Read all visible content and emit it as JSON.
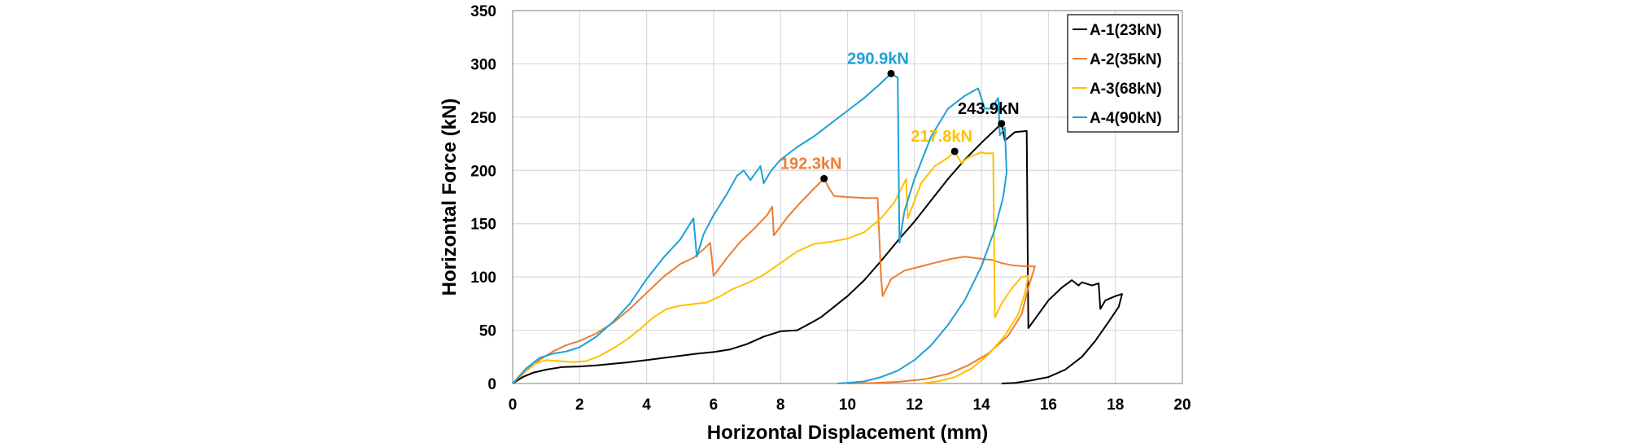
{
  "chart_data": {
    "type": "line",
    "xlabel": "Horizontal Displacement (mm)",
    "ylabel": "Horizontal Force (kN)",
    "xlim": [
      0,
      20
    ],
    "ylim": [
      0,
      350
    ],
    "xticks": [
      0,
      2,
      4,
      6,
      8,
      10,
      12,
      14,
      16,
      18,
      20
    ],
    "yticks": [
      0,
      50,
      100,
      150,
      200,
      250,
      300,
      350
    ],
    "grid": true,
    "legend_position": "top-right",
    "series": [
      {
        "name": "A-1(23kN)",
        "color": "#000000",
        "points": [
          [
            0,
            0
          ],
          [
            0.3,
            6
          ],
          [
            0.6,
            10
          ],
          [
            1.0,
            13
          ],
          [
            1.5,
            15.5
          ],
          [
            2,
            16
          ],
          [
            2.5,
            17
          ],
          [
            3,
            18.5
          ],
          [
            3.5,
            20
          ],
          [
            4,
            22
          ],
          [
            4.5,
            24
          ],
          [
            5,
            26
          ],
          [
            5.5,
            28
          ],
          [
            6,
            29.5
          ],
          [
            6.5,
            32
          ],
          [
            7,
            37
          ],
          [
            7.5,
            44
          ],
          [
            8,
            49
          ],
          [
            8.5,
            50
          ],
          [
            8.8,
            55
          ],
          [
            9.2,
            62
          ],
          [
            9.6,
            72
          ],
          [
            10,
            82
          ],
          [
            10.5,
            97
          ],
          [
            11,
            115
          ],
          [
            11.5,
            134
          ],
          [
            12,
            152
          ],
          [
            12.5,
            172
          ],
          [
            13,
            192
          ],
          [
            13.5,
            210
          ],
          [
            14,
            226
          ],
          [
            14.4,
            238
          ],
          [
            14.6,
            243.9
          ],
          [
            14.7,
            228
          ],
          [
            15.0,
            236
          ],
          [
            15.35,
            237
          ],
          [
            15.4,
            52
          ],
          [
            15.7,
            65
          ],
          [
            16.0,
            78
          ],
          [
            16.4,
            90
          ],
          [
            16.7,
            97
          ],
          [
            16.9,
            92
          ],
          [
            17.0,
            95
          ],
          [
            17.3,
            92
          ],
          [
            17.5,
            94
          ],
          [
            17.55,
            70
          ],
          [
            17.7,
            78
          ],
          [
            18.0,
            82
          ],
          [
            18.2,
            84
          ],
          [
            18.1,
            72
          ],
          [
            17.8,
            58
          ],
          [
            17.4,
            40
          ],
          [
            17.0,
            25
          ],
          [
            16.5,
            13
          ],
          [
            16.0,
            6
          ],
          [
            15.5,
            3
          ],
          [
            15,
            0.5
          ],
          [
            14.6,
            0
          ]
        ]
      },
      {
        "name": "A-2(35kN)",
        "color": "#ed7d31",
        "points": [
          [
            0,
            0
          ],
          [
            0.4,
            12
          ],
          [
            0.8,
            22
          ],
          [
            1.2,
            30
          ],
          [
            1.6,
            36
          ],
          [
            2,
            40
          ],
          [
            2.5,
            47
          ],
          [
            3,
            57
          ],
          [
            3.5,
            70
          ],
          [
            4,
            85
          ],
          [
            4.5,
            100
          ],
          [
            5,
            112
          ],
          [
            5.4,
            118
          ],
          [
            5.7,
            126
          ],
          [
            5.9,
            132
          ],
          [
            6.0,
            101
          ],
          [
            6.4,
            118
          ],
          [
            6.8,
            133
          ],
          [
            7.2,
            145
          ],
          [
            7.6,
            158
          ],
          [
            7.75,
            166
          ],
          [
            7.8,
            139
          ],
          [
            8.2,
            156
          ],
          [
            8.6,
            170
          ],
          [
            9.0,
            183
          ],
          [
            9.3,
            192.3
          ],
          [
            9.45,
            183
          ],
          [
            9.6,
            176
          ],
          [
            10,
            175
          ],
          [
            10.5,
            174
          ],
          [
            10.9,
            174
          ],
          [
            11.0,
            100
          ],
          [
            11.05,
            82
          ],
          [
            11.3,
            98
          ],
          [
            11.7,
            106
          ],
          [
            12.2,
            110
          ],
          [
            12.7,
            114
          ],
          [
            13.1,
            117
          ],
          [
            13.5,
            119
          ],
          [
            14,
            117
          ],
          [
            14.3,
            116
          ],
          [
            14.6,
            113
          ],
          [
            14.9,
            111
          ],
          [
            15.3,
            110
          ],
          [
            15.6,
            110
          ],
          [
            15.4,
            90
          ],
          [
            15.2,
            65
          ],
          [
            14.8,
            45
          ],
          [
            14.2,
            28
          ],
          [
            13.6,
            17
          ],
          [
            13,
            9
          ],
          [
            12.3,
            4
          ],
          [
            11.5,
            1.5
          ],
          [
            10.8,
            0.5
          ],
          [
            10,
            0
          ]
        ]
      },
      {
        "name": "A-3(68kN)",
        "color": "#ffc000",
        "points": [
          [
            0,
            0
          ],
          [
            0.3,
            10
          ],
          [
            0.6,
            18
          ],
          [
            1,
            22
          ],
          [
            1.4,
            21
          ],
          [
            1.8,
            20
          ],
          [
            2.2,
            21
          ],
          [
            2.6,
            26
          ],
          [
            3,
            33
          ],
          [
            3.4,
            41
          ],
          [
            3.8,
            51
          ],
          [
            4.2,
            62
          ],
          [
            4.6,
            70
          ],
          [
            5,
            73
          ],
          [
            5.5,
            75
          ],
          [
            5.8,
            76
          ],
          [
            6.2,
            82
          ],
          [
            6.6,
            89
          ],
          [
            7,
            94
          ],
          [
            7.5,
            102
          ],
          [
            8,
            113
          ],
          [
            8.5,
            124
          ],
          [
            9,
            131
          ],
          [
            9.5,
            133
          ],
          [
            10,
            136
          ],
          [
            10.5,
            142
          ],
          [
            11,
            155
          ],
          [
            11.4,
            170
          ],
          [
            11.75,
            192
          ],
          [
            11.8,
            155
          ],
          [
            12.2,
            188
          ],
          [
            12.6,
            204
          ],
          [
            13.0,
            212
          ],
          [
            13.2,
            217.8
          ],
          [
            13.4,
            207
          ],
          [
            13.6,
            212
          ],
          [
            14,
            217
          ],
          [
            14.1,
            216
          ],
          [
            14.35,
            216
          ],
          [
            14.4,
            62
          ],
          [
            14.6,
            75
          ],
          [
            14.9,
            89
          ],
          [
            15.2,
            100
          ],
          [
            15.4,
            101
          ],
          [
            15.3,
            85
          ],
          [
            15.1,
            65
          ],
          [
            14.7,
            45
          ],
          [
            14.2,
            27
          ],
          [
            13.7,
            14
          ],
          [
            13.2,
            6
          ],
          [
            12.7,
            2
          ],
          [
            12.2,
            0
          ]
        ]
      },
      {
        "name": "A-4(90kN)",
        "color": "#1ea1d5",
        "points": [
          [
            0,
            0
          ],
          [
            0.4,
            14
          ],
          [
            0.8,
            24
          ],
          [
            1.2,
            28
          ],
          [
            1.6,
            30
          ],
          [
            2,
            34
          ],
          [
            2.5,
            44
          ],
          [
            3,
            58
          ],
          [
            3.5,
            75
          ],
          [
            4,
            98
          ],
          [
            4.5,
            118
          ],
          [
            5,
            135
          ],
          [
            5.4,
            155
          ],
          [
            5.5,
            119
          ],
          [
            5.7,
            140
          ],
          [
            6,
            158
          ],
          [
            6.4,
            178
          ],
          [
            6.7,
            195
          ],
          [
            6.9,
            200
          ],
          [
            7.1,
            191
          ],
          [
            7.4,
            204
          ],
          [
            7.5,
            188
          ],
          [
            7.7,
            199
          ],
          [
            8,
            210
          ],
          [
            8.5,
            222
          ],
          [
            9,
            232
          ],
          [
            9.5,
            244
          ],
          [
            10,
            256
          ],
          [
            10.5,
            268
          ],
          [
            11,
            282
          ],
          [
            11.2,
            288
          ],
          [
            11.3,
            290.9
          ],
          [
            11.5,
            287
          ],
          [
            11.55,
            132
          ],
          [
            11.7,
            162
          ],
          [
            12,
            192
          ],
          [
            12.5,
            232
          ],
          [
            13,
            258
          ],
          [
            13.5,
            270
          ],
          [
            13.9,
            277
          ],
          [
            14.1,
            258
          ],
          [
            14.3,
            258
          ],
          [
            14.5,
            268
          ],
          [
            14.55,
            233
          ],
          [
            14.7,
            240
          ],
          [
            14.75,
            198
          ],
          [
            14.65,
            175
          ],
          [
            14.4,
            145
          ],
          [
            14.0,
            110
          ],
          [
            13.5,
            78
          ],
          [
            13,
            55
          ],
          [
            12.5,
            36
          ],
          [
            12,
            22
          ],
          [
            11.5,
            12
          ],
          [
            11,
            6
          ],
          [
            10.5,
            2
          ],
          [
            10,
            0.5
          ],
          [
            9.7,
            0
          ]
        ]
      }
    ],
    "annotations": [
      {
        "text": "290.9kN",
        "x": 11.3,
        "y": 290.9,
        "color": "#1ea1d5"
      },
      {
        "text": "243.9kN",
        "x": 14.6,
        "y": 243.9,
        "color": "#000000"
      },
      {
        "text": "217.8kN",
        "x": 13.2,
        "y": 217.8,
        "color": "#ffc000"
      },
      {
        "text": "192.3kN",
        "x": 9.3,
        "y": 192.3,
        "color": "#ed7d31"
      }
    ]
  }
}
